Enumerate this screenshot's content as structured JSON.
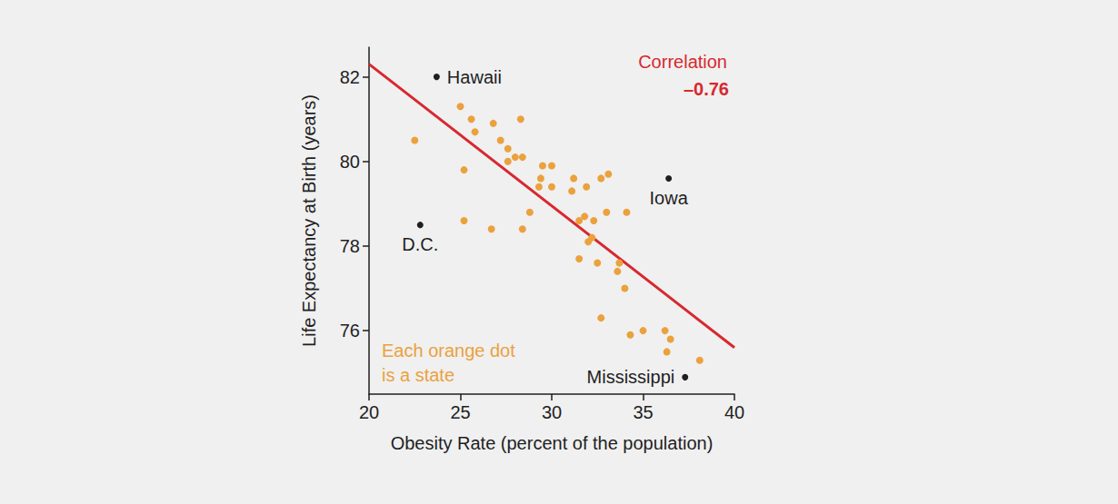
{
  "chart_data": {
    "type": "scatter",
    "x_label": "Obesity Rate (percent of the population)",
    "y_label": "Life Expectancy at Birth (years)",
    "xlim": [
      20,
      40
    ],
    "xticks": [
      20,
      25,
      30,
      35,
      40
    ],
    "ylim": [
      74.5,
      82.7
    ],
    "yticks": [
      76,
      78,
      80,
      82
    ],
    "grid": false,
    "series": [
      {
        "color": "#eba13c",
        "marker": "circle",
        "values": [
          [
            22.5,
            80.5
          ],
          [
            25.0,
            81.3
          ],
          [
            25.6,
            81.0
          ],
          [
            25.8,
            80.7
          ],
          [
            26.8,
            80.9
          ],
          [
            28.3,
            81.0
          ],
          [
            25.2,
            79.8
          ],
          [
            27.2,
            80.5
          ],
          [
            27.6,
            80.3
          ],
          [
            27.6,
            80.0
          ],
          [
            28.0,
            80.1
          ],
          [
            28.4,
            80.1
          ],
          [
            29.5,
            79.9
          ],
          [
            30.0,
            79.9
          ],
          [
            29.4,
            79.6
          ],
          [
            29.3,
            79.4
          ],
          [
            30.0,
            79.4
          ],
          [
            31.2,
            79.6
          ],
          [
            31.1,
            79.3
          ],
          [
            31.9,
            79.4
          ],
          [
            33.1,
            79.7
          ],
          [
            32.7,
            79.6
          ],
          [
            25.2,
            78.6
          ],
          [
            26.7,
            78.4
          ],
          [
            28.4,
            78.4
          ],
          [
            28.8,
            78.8
          ],
          [
            31.5,
            78.6
          ],
          [
            31.8,
            78.7
          ],
          [
            32.3,
            78.6
          ],
          [
            33.0,
            78.8
          ],
          [
            34.1,
            78.8
          ],
          [
            32.2,
            78.2
          ],
          [
            32.0,
            78.1
          ],
          [
            31.5,
            77.7
          ],
          [
            32.5,
            77.6
          ],
          [
            33.7,
            77.6
          ],
          [
            33.6,
            77.4
          ],
          [
            34.0,
            77.0
          ],
          [
            32.7,
            76.3
          ],
          [
            35.0,
            76.0
          ],
          [
            34.3,
            75.9
          ],
          [
            36.2,
            76.0
          ],
          [
            36.5,
            75.8
          ],
          [
            36.3,
            75.5
          ],
          [
            38.1,
            75.3
          ]
        ]
      },
      {
        "color": "#1f1f1f",
        "marker": "circle",
        "values": [
          [
            23.7,
            82.0
          ],
          [
            36.4,
            79.6
          ],
          [
            22.8,
            78.5
          ],
          [
            37.3,
            74.9
          ]
        ],
        "point_labels": [
          "Hawaii",
          "Iowa",
          "D.C.",
          "Mississippi"
        ]
      }
    ],
    "trend_line": {
      "color": "#d7282f",
      "x": [
        20,
        40
      ],
      "y": [
        82.3,
        75.6
      ]
    },
    "correlation": {
      "label": "Correlation",
      "value": -0.76,
      "value_label": "–0.76",
      "color": "#d7282f"
    },
    "note": {
      "text": "Each orange dot is a state",
      "color": "#eba13c"
    }
  }
}
